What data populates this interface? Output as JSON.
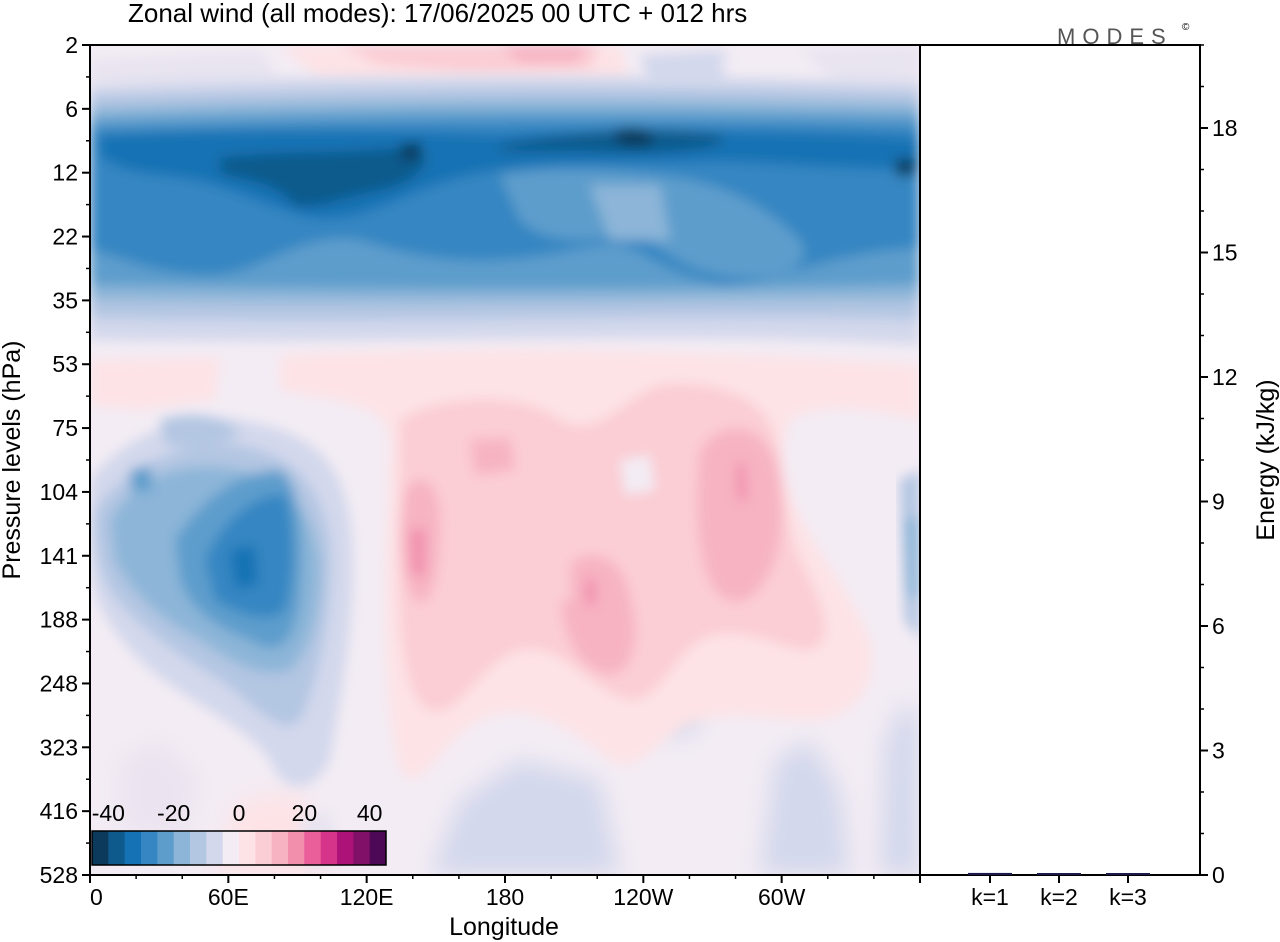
{
  "title": "Zonal wind (all modes):  17/06/2025  00 UTC  + 012 hrs",
  "brand": "MODES",
  "brand_mark": "©",
  "chart_data": [
    {
      "type": "heatmap",
      "xlabel": "Longitude",
      "ylabel": "Pressure levels (hPa)",
      "x_ticks": [
        "0",
        "60E",
        "120E",
        "180",
        "120W",
        "60W"
      ],
      "y_ticks": [
        "2",
        "6",
        "12",
        "22",
        "35",
        "53",
        "75",
        "104",
        "141",
        "188",
        "248",
        "323",
        "416",
        "528"
      ],
      "colorbar": {
        "tick_labels": [
          "-40",
          "-20",
          "0",
          "20",
          "40"
        ],
        "range": [
          -45,
          45
        ],
        "colors": [
          "#0b3a5c",
          "#0f5a8c",
          "#1572b4",
          "#3586c2",
          "#5d9dcc",
          "#8cb5d8",
          "#b3c6e2",
          "#d3d8ec",
          "#f3ecf4",
          "#fde3e6",
          "#fbcdd4",
          "#f7b3c2",
          "#f18fad",
          "#ea5f99",
          "#d6338a",
          "#ad1278",
          "#801068",
          "#4d0856"
        ]
      },
      "fields": {
        "background": "#f3ecf4",
        "jet_band_speed_ms": -40,
        "lower_jet_core_ms": -38,
        "upper_easterly_ms": 12,
        "positive_core_ms": 22
      }
    },
    {
      "type": "bar",
      "categories": [
        "k=1",
        "k=2",
        "k=3"
      ],
      "values": [
        0.05,
        0.03,
        0.0
      ],
      "ylabel": "Energy (kJ/kg)",
      "ylim": [
        0,
        20
      ],
      "y_ticks": [
        "0",
        "3",
        "6",
        "9",
        "12",
        "15",
        "18"
      ],
      "bar_color": "#1a1a4d"
    }
  ]
}
